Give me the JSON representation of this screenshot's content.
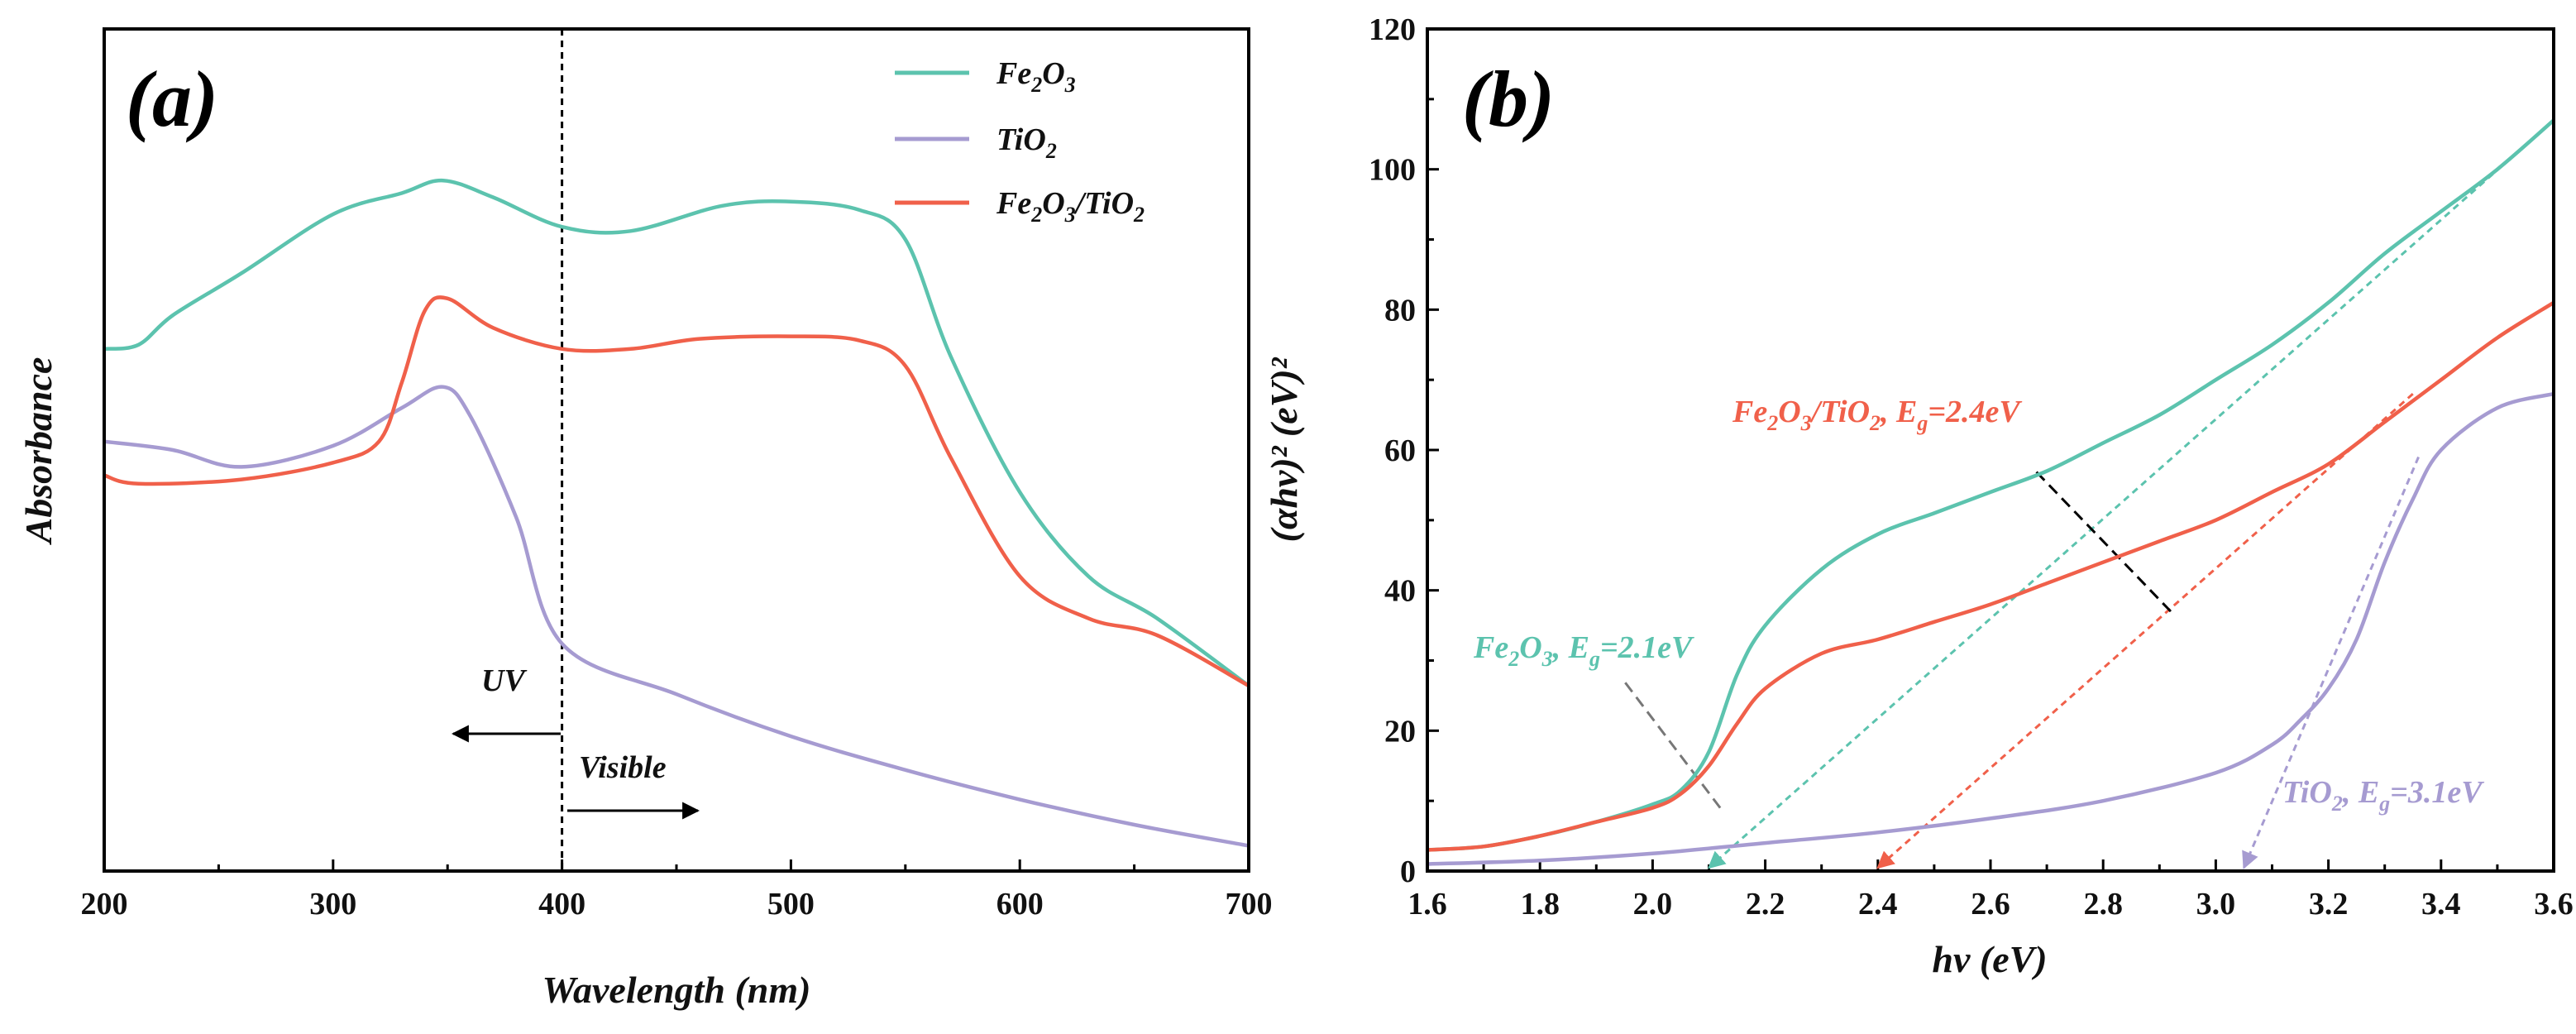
{
  "colors": {
    "fe2o3": "#5cc3ae",
    "tio2": "#a69bd1",
    "composite": "#f0604a",
    "axis": "#000000"
  },
  "chart_data": [
    {
      "type": "line",
      "panel_label": "(a)",
      "xlabel": "Wavelength (nm)",
      "ylabel": "Absorbance",
      "xlim": [
        200,
        700
      ],
      "ylim": [
        0,
        1
      ],
      "x_ticks": [
        "200",
        "300",
        "400",
        "500",
        "600",
        "700"
      ],
      "y_ticks_shown": false,
      "divider_x": 400,
      "annotations": [
        {
          "text": "UV",
          "arrow": "left"
        },
        {
          "text": "Visible",
          "arrow": "right"
        }
      ],
      "series": [
        {
          "name": "Fe2O3",
          "parts": [
            [
              "Fe",
              ""
            ],
            [
              "2",
              "sub"
            ],
            [
              "O",
              ""
            ],
            [
              "3",
              "sub"
            ]
          ],
          "color_key": "fe2o3",
          "points": [
            [
              200,
              0.62
            ],
            [
              215,
              0.625
            ],
            [
              230,
              0.66
            ],
            [
              260,
              0.71
            ],
            [
              300,
              0.78
            ],
            [
              330,
              0.805
            ],
            [
              348,
              0.82
            ],
            [
              370,
              0.8
            ],
            [
              400,
              0.765
            ],
            [
              430,
              0.76
            ],
            [
              470,
              0.79
            ],
            [
              500,
              0.795
            ],
            [
              530,
              0.785
            ],
            [
              550,
              0.75
            ],
            [
              570,
              0.61
            ],
            [
              600,
              0.45
            ],
            [
              630,
              0.35
            ],
            [
              660,
              0.3
            ],
            [
              700,
              0.22
            ]
          ]
        },
        {
          "name": "TiO2",
          "parts": [
            [
              "TiO",
              ""
            ],
            [
              "2",
              "sub"
            ]
          ],
          "color_key": "tio2",
          "points": [
            [
              200,
              0.51
            ],
            [
              230,
              0.5
            ],
            [
              260,
              0.48
            ],
            [
              300,
              0.505
            ],
            [
              330,
              0.55
            ],
            [
              348,
              0.575
            ],
            [
              360,
              0.54
            ],
            [
              380,
              0.42
            ],
            [
              400,
              0.27
            ],
            [
              450,
              0.21
            ],
            [
              500,
              0.16
            ],
            [
              550,
              0.12
            ],
            [
              600,
              0.085
            ],
            [
              650,
              0.055
            ],
            [
              700,
              0.03
            ]
          ]
        },
        {
          "name": "Fe2O3/TiO2",
          "parts": [
            [
              "Fe",
              ""
            ],
            [
              "2",
              "sub"
            ],
            [
              "O",
              ""
            ],
            [
              "3",
              "sub"
            ],
            [
              "/TiO",
              ""
            ],
            [
              "2",
              "sub"
            ]
          ],
          "color_key": "composite",
          "points": [
            [
              200,
              0.47
            ],
            [
              215,
              0.46
            ],
            [
              260,
              0.465
            ],
            [
              300,
              0.485
            ],
            [
              320,
              0.51
            ],
            [
              330,
              0.58
            ],
            [
              340,
              0.665
            ],
            [
              350,
              0.68
            ],
            [
              370,
              0.645
            ],
            [
              400,
              0.62
            ],
            [
              430,
              0.62
            ],
            [
              460,
              0.632
            ],
            [
              500,
              0.635
            ],
            [
              530,
              0.63
            ],
            [
              550,
              0.6
            ],
            [
              570,
              0.49
            ],
            [
              600,
              0.35
            ],
            [
              630,
              0.3
            ],
            [
              660,
              0.28
            ],
            [
              700,
              0.22
            ]
          ]
        }
      ]
    },
    {
      "type": "line",
      "panel_label": "(b)",
      "xlabel": "hν (eV)",
      "ylabel": "(αhν)² (eV)²",
      "xlim": [
        1.6,
        3.6
      ],
      "ylim": [
        0,
        120
      ],
      "x_ticks": [
        "1.6",
        "1.8",
        "2.0",
        "2.2",
        "2.4",
        "2.6",
        "2.8",
        "3.0",
        "3.2",
        "3.4",
        "3.6"
      ],
      "y_ticks": [
        "0",
        "20",
        "40",
        "60",
        "80",
        "100",
        "120"
      ],
      "series": [
        {
          "name": "Fe2O3",
          "color_key": "fe2o3",
          "points": [
            [
              1.6,
              3
            ],
            [
              1.7,
              3.5
            ],
            [
              1.8,
              5
            ],
            [
              1.9,
              7
            ],
            [
              2.0,
              9.5
            ],
            [
              2.05,
              11.5
            ],
            [
              2.1,
              17
            ],
            [
              2.15,
              28
            ],
            [
              2.2,
              35
            ],
            [
              2.3,
              43
            ],
            [
              2.4,
              48
            ],
            [
              2.5,
              51
            ],
            [
              2.6,
              54
            ],
            [
              2.7,
              57
            ],
            [
              2.8,
              61
            ],
            [
              2.9,
              65
            ],
            [
              3.0,
              70
            ],
            [
              3.1,
              75
            ],
            [
              3.2,
              81
            ],
            [
              3.3,
              88
            ],
            [
              3.4,
              94
            ],
            [
              3.5,
              100
            ],
            [
              3.6,
              107
            ]
          ]
        },
        {
          "name": "TiO2",
          "color_key": "tio2",
          "points": [
            [
              1.6,
              1
            ],
            [
              1.8,
              1.5
            ],
            [
              2.0,
              2.5
            ],
            [
              2.2,
              4
            ],
            [
              2.4,
              5.5
            ],
            [
              2.6,
              7.5
            ],
            [
              2.8,
              10
            ],
            [
              3.0,
              14
            ],
            [
              3.1,
              18
            ],
            [
              3.15,
              21.5
            ],
            [
              3.2,
              26
            ],
            [
              3.25,
              33
            ],
            [
              3.3,
              44
            ],
            [
              3.35,
              53
            ],
            [
              3.4,
              60
            ],
            [
              3.5,
              66
            ],
            [
              3.6,
              68
            ]
          ]
        },
        {
          "name": "Fe2O3/TiO2",
          "color_key": "composite",
          "points": [
            [
              1.6,
              3
            ],
            [
              1.7,
              3.5
            ],
            [
              1.8,
              5
            ],
            [
              1.9,
              7
            ],
            [
              2.0,
              9
            ],
            [
              2.05,
              11
            ],
            [
              2.1,
              15
            ],
            [
              2.15,
              21
            ],
            [
              2.2,
              26
            ],
            [
              2.3,
              31
            ],
            [
              2.4,
              33
            ],
            [
              2.5,
              35.5
            ],
            [
              2.6,
              38
            ],
            [
              2.7,
              41
            ],
            [
              2.8,
              44
            ],
            [
              2.9,
              47
            ],
            [
              3.0,
              50
            ],
            [
              3.1,
              54
            ],
            [
              3.2,
              58
            ],
            [
              3.3,
              64
            ],
            [
              3.4,
              70
            ],
            [
              3.5,
              76
            ],
            [
              3.6,
              81
            ]
          ]
        }
      ],
      "tangents": [
        {
          "color_key": "fe2o3",
          "from": [
            2.1,
            0
          ],
          "to": [
            3.6,
            107
          ]
        },
        {
          "color_key": "composite",
          "from": [
            2.4,
            0
          ],
          "to": [
            3.35,
            68
          ]
        },
        {
          "color_key": "tio2",
          "from": [
            3.05,
            0
          ],
          "to": [
            3.36,
            59
          ]
        }
      ],
      "leaders": [
        {
          "from": [
            2.12,
            9
          ],
          "to": [
            1.95,
            27
          ]
        },
        {
          "from": [
            2.92,
            37
          ],
          "to": [
            2.68,
            57
          ]
        }
      ],
      "annotations": [
        {
          "label": "Fe2O3, Eg=2.1eV",
          "color_key": "fe2o3",
          "parts": [
            [
              "Fe",
              ""
            ],
            [
              "2",
              "sub"
            ],
            [
              "O",
              ""
            ],
            [
              "3",
              "sub"
            ],
            [
              ", E",
              ""
            ],
            [
              "g",
              "sub"
            ],
            [
              "=2.1eV",
              ""
            ]
          ]
        },
        {
          "label": "Fe2O3/TiO2, Eg=2.4eV",
          "color_key": "composite",
          "parts": [
            [
              "Fe",
              ""
            ],
            [
              "2",
              "sub"
            ],
            [
              "O",
              ""
            ],
            [
              "3",
              "sub"
            ],
            [
              "/TiO",
              ""
            ],
            [
              "2",
              "sub"
            ],
            [
              ", E",
              ""
            ],
            [
              "g",
              "sub"
            ],
            [
              "=2.4eV",
              ""
            ]
          ]
        },
        {
          "label": "TiO2, Eg=3.1eV",
          "color_key": "tio2",
          "parts": [
            [
              "TiO",
              ""
            ],
            [
              "2",
              "sub"
            ],
            [
              ", E",
              ""
            ],
            [
              "g",
              "sub"
            ],
            [
              "=3.1eV",
              ""
            ]
          ]
        }
      ]
    }
  ]
}
